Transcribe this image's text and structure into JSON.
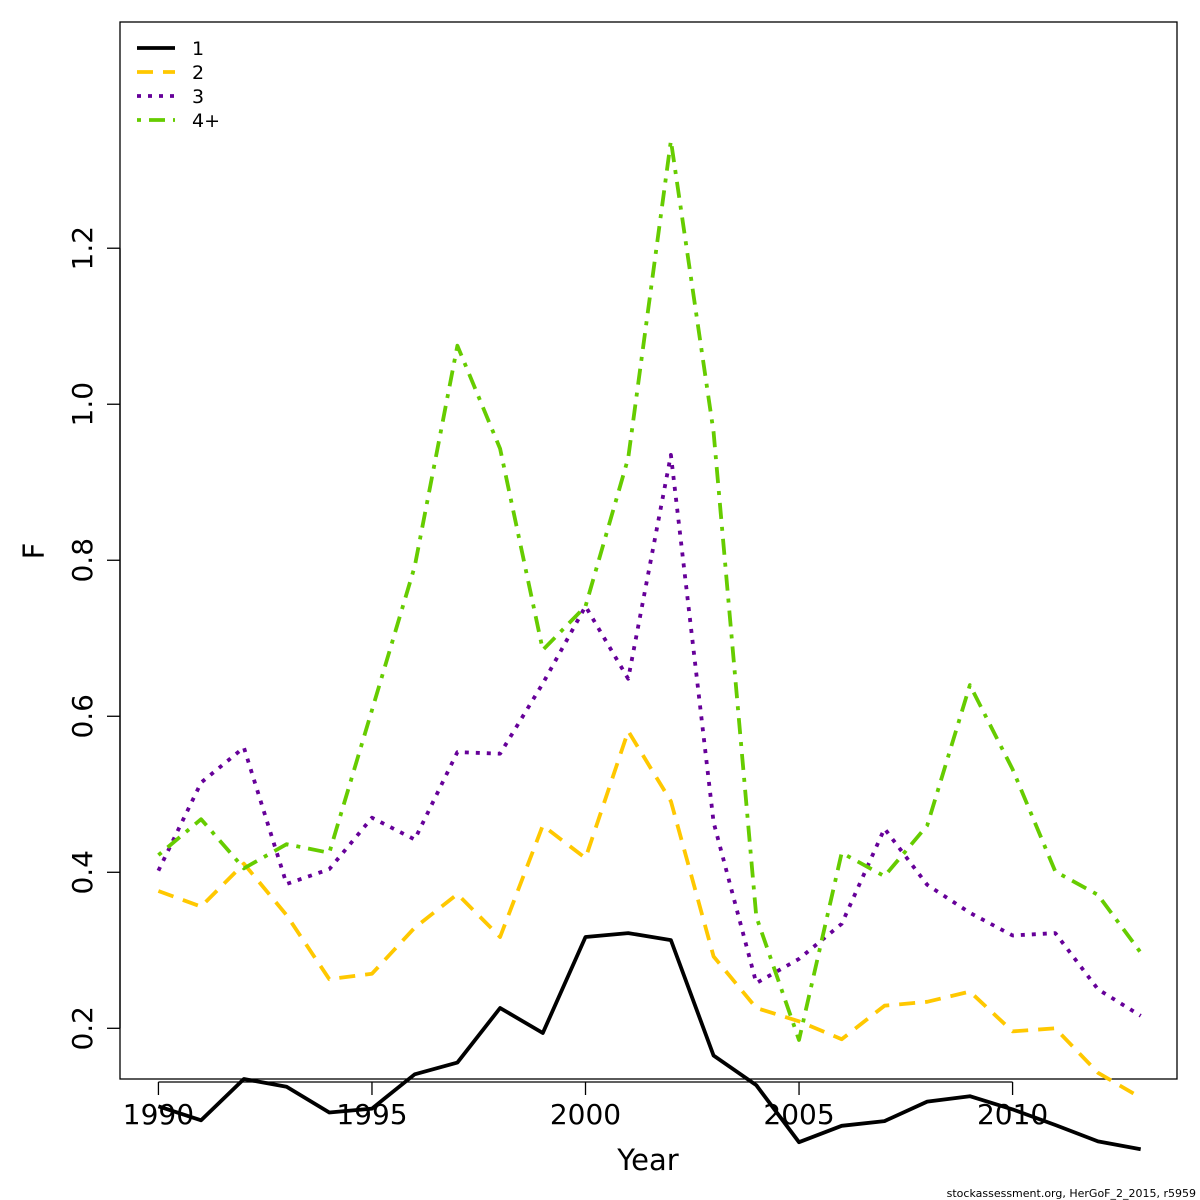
{
  "chart_data": {
    "type": "line",
    "title": "",
    "xlabel": "Year",
    "ylabel": "F",
    "xlim": [
      1989.1,
      2013.85
    ],
    "ylim": [
      0.135,
      1.49
    ],
    "x_ticks": [
      1990,
      1995,
      2000,
      2005,
      2010
    ],
    "y_ticks": [
      0.2,
      0.4,
      0.6,
      0.8,
      1.0,
      1.2
    ],
    "y_tick_labels": [
      "0.2",
      "0.4",
      "0.6",
      "0.8",
      "1.0",
      "1.2"
    ],
    "grid": false,
    "legend_position": "top-left",
    "x": [
      1990,
      1991,
      1992,
      1993,
      1994,
      1995,
      1996,
      1997,
      1998,
      1999,
      2000,
      2001,
      2002,
      2003,
      2004,
      2005,
      2006,
      2007,
      2008,
      2009,
      2010,
      2011,
      2012,
      2013
    ],
    "series": [
      {
        "name": "1",
        "color": "#000000",
        "dash": "solid",
        "values": [
          0.1,
          0.082,
          0.135,
          0.125,
          0.092,
          0.097,
          0.141,
          0.156,
          0.226,
          0.194,
          0.317,
          0.322,
          0.313,
          0.165,
          0.127,
          0.054,
          0.075,
          0.081,
          0.106,
          0.113,
          0.096,
          0.076,
          0.055,
          0.045
        ]
      },
      {
        "name": "2",
        "color": "#FFC800",
        "dash": "dashed",
        "values": [
          0.376,
          0.356,
          0.411,
          0.345,
          0.263,
          0.27,
          0.329,
          0.372,
          0.317,
          0.46,
          0.418,
          0.581,
          0.491,
          0.292,
          0.226,
          0.209,
          0.186,
          0.229,
          0.234,
          0.247,
          0.196,
          0.2,
          0.143,
          0.111
        ]
      },
      {
        "name": "3",
        "color": "#660099",
        "dash": "dotted",
        "values": [
          0.402,
          0.515,
          0.56,
          0.385,
          0.404,
          0.47,
          0.442,
          0.554,
          0.552,
          0.642,
          0.741,
          0.648,
          0.935,
          0.464,
          0.258,
          0.289,
          0.334,
          0.456,
          0.384,
          0.348,
          0.319,
          0.322,
          0.25,
          0.216
        ]
      },
      {
        "name": "4+",
        "color": "#66CC00",
        "dash": "dashdot",
        "values": [
          0.422,
          0.468,
          0.405,
          0.436,
          0.425,
          0.608,
          0.792,
          1.075,
          0.943,
          0.685,
          0.741,
          0.931,
          1.338,
          0.964,
          0.343,
          0.185,
          0.425,
          0.395,
          0.46,
          0.64,
          0.532,
          0.401,
          0.371,
          0.297
        ]
      }
    ],
    "footnote": "stockassessment.org, HerGoF_2_2015, r5959"
  }
}
